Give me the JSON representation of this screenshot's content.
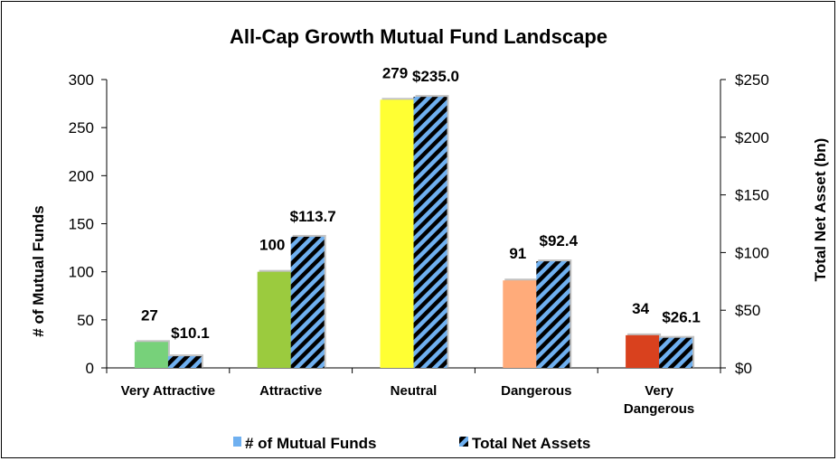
{
  "chart_data": {
    "type": "bar",
    "title": "All-Cap Growth Mutual Fund Landscape",
    "categories": [
      [
        "Very Attractive"
      ],
      [
        "Attractive"
      ],
      [
        "Neutral"
      ],
      [
        "Dangerous"
      ],
      [
        "Very",
        "Dangerous"
      ]
    ],
    "ylabel_left": "# of Mutual Funds",
    "ylabel_right": "Total Net Asset (bn)",
    "ylim_left": [
      0,
      300
    ],
    "yticks_left": [
      "0",
      "50",
      "100",
      "150",
      "200",
      "250",
      "300"
    ],
    "ylim_right": [
      0,
      250
    ],
    "yticks_right": [
      "$0",
      "$50",
      "$100",
      "$150",
      "$200",
      "$250"
    ],
    "grid": false,
    "legend_position": "bottom",
    "series": [
      {
        "name": "# of Mutual Funds",
        "axis": "left",
        "values": [
          27,
          100,
          279,
          91,
          34
        ],
        "labels": [
          "27",
          "100",
          "279",
          "91",
          "34"
        ],
        "colors": [
          "#77d17a",
          "#9bcb3e",
          "#ffff33",
          "#ffab7a",
          "#d9411e"
        ],
        "legend_color": "#6fb0f0"
      },
      {
        "name": "Total Net Assets",
        "axis": "right",
        "values": [
          10.1,
          113.7,
          235.0,
          92.4,
          26.1
        ],
        "labels": [
          "$10.1",
          "$113.7",
          "$235.0",
          "$92.4",
          "$26.1"
        ],
        "fill_color": "#6fb0f0",
        "stripe_color": "#000000"
      }
    ]
  }
}
